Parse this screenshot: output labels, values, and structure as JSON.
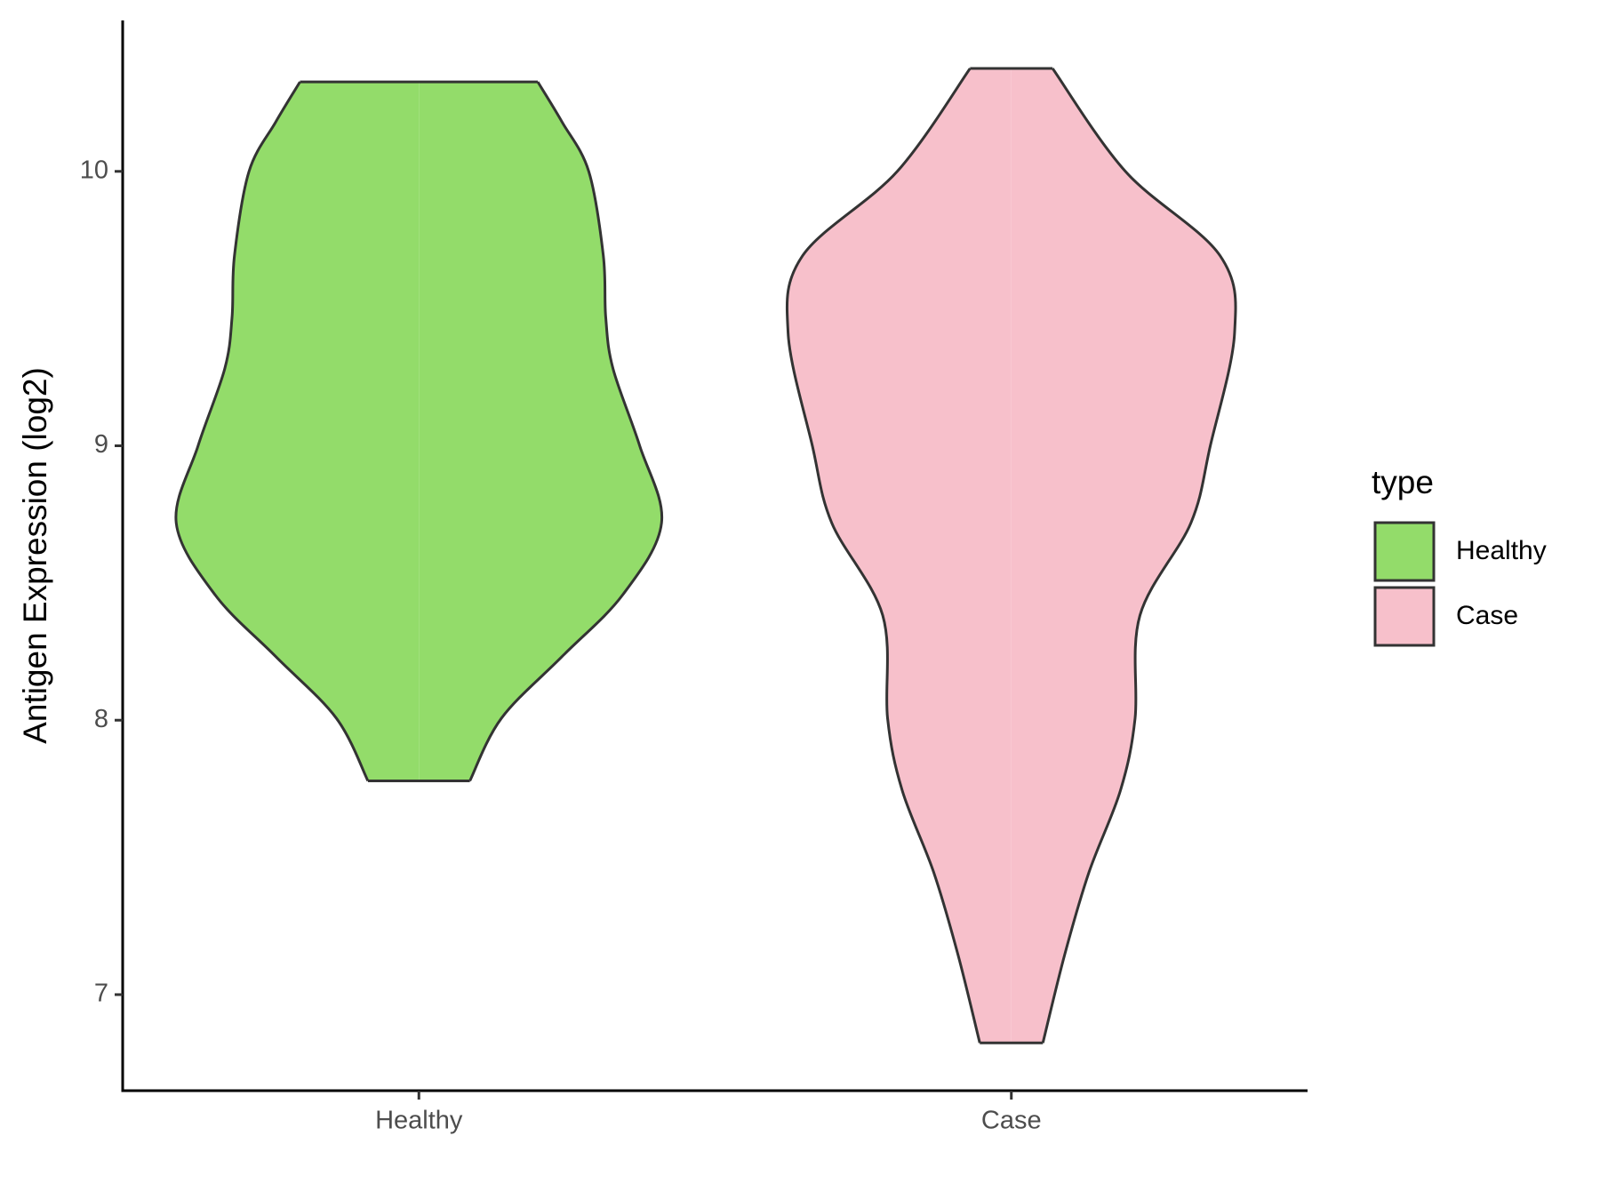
{
  "chart_data": {
    "type": "violin",
    "ylabel": "Antigen Expression (log2)",
    "categories": [
      "Healthy",
      "Case"
    ],
    "ylim": [
      6.65,
      10.55
    ],
    "yticks": [
      7,
      8,
      9,
      10
    ],
    "legend_title": "type",
    "legend": "right",
    "series": [
      {
        "name": "Healthy",
        "color": "#93dc6a",
        "y": [
          7.779,
          8.007,
          8.232,
          8.457,
          8.719,
          9.0,
          9.281,
          9.468,
          9.693,
          10.0,
          10.18,
          10.326
        ],
        "density": [
          0.21,
          0.34,
          0.59,
          0.84,
          1.0,
          0.91,
          0.8,
          0.77,
          0.76,
          0.7,
          0.59,
          0.49
        ]
      },
      {
        "name": "Case",
        "color": "#f7c0cb",
        "y": [
          6.824,
          7.146,
          7.446,
          7.745,
          8.007,
          8.382,
          8.719,
          9.0,
          9.412,
          9.693,
          10.0,
          10.375
        ],
        "density": [
          0.13,
          0.22,
          0.32,
          0.45,
          0.51,
          0.53,
          0.74,
          0.82,
          0.92,
          0.86,
          0.47,
          0.17
        ]
      }
    ]
  }
}
